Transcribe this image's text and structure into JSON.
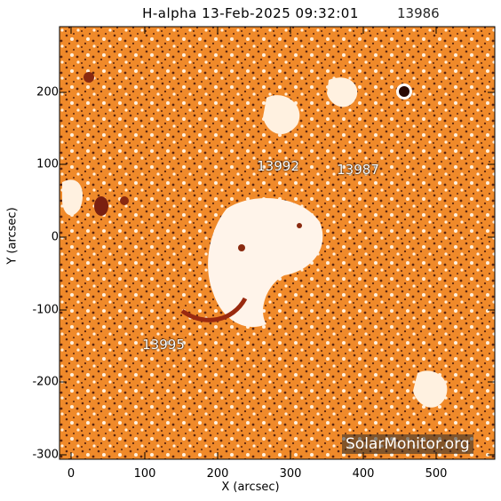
{
  "title": "H-alpha 13-Feb-2025 09:32:01",
  "title_overlap_label": "13986",
  "x_axis": {
    "label": "X (arcsec)",
    "ticks": [
      "0",
      "100",
      "200",
      "300",
      "400",
      "500"
    ]
  },
  "y_axis": {
    "label": "Y (arcsec)",
    "ticks": [
      "200",
      "100",
      "0",
      "-100",
      "-200",
      "-300"
    ]
  },
  "regions": [
    {
      "number": "13992"
    },
    {
      "number": "13987"
    },
    {
      "number": "13995"
    }
  ],
  "watermark": "SolarMonitor.org",
  "colors": {
    "orange": "#f08a2a",
    "light": "#fff1e0",
    "dark": "#6a2a10",
    "frame": "#000000"
  }
}
